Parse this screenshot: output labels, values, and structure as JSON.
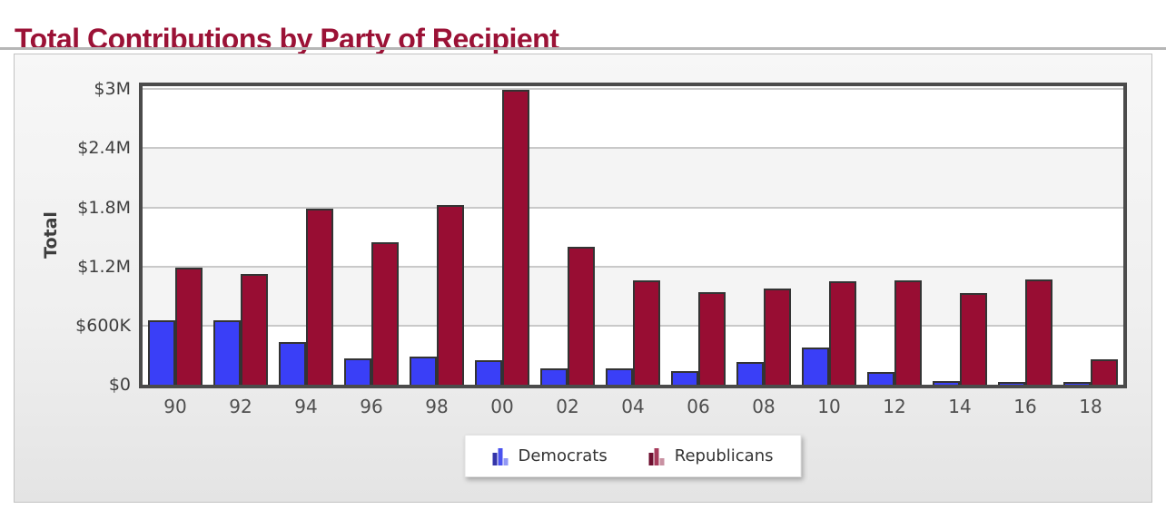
{
  "page": {
    "title": "Total Contributions by Party of Recipient"
  },
  "chart_data": {
    "type": "bar",
    "title": "Total Contributions by Party of Recipient",
    "xlabel": "",
    "ylabel": "Total",
    "units": "USD",
    "categories": [
      "90",
      "92",
      "94",
      "96",
      "98",
      "00",
      "02",
      "04",
      "06",
      "08",
      "10",
      "12",
      "14",
      "16",
      "18"
    ],
    "series": [
      {
        "name": "Democrats",
        "color": "#3a3ff7",
        "legend_icon_colors": [
          "#3334a8",
          "#4a52ef",
          "#9298f5"
        ],
        "values": [
          655000,
          650000,
          430000,
          265000,
          285000,
          250000,
          165000,
          165000,
          140000,
          230000,
          375000,
          130000,
          40000,
          20000,
          10000
        ]
      },
      {
        "name": "Republicans",
        "color": "#980d33",
        "legend_icon_colors": [
          "#6e0f2f",
          "#a63b5b",
          "#c991a2"
        ],
        "values": [
          1190000,
          1120000,
          1790000,
          1450000,
          1820000,
          2990000,
          1400000,
          1060000,
          940000,
          980000,
          1050000,
          1060000,
          930000,
          1070000,
          260000
        ]
      }
    ],
    "y_ticks": [
      {
        "value": 0,
        "label": "$0"
      },
      {
        "value": 600000,
        "label": "$600K"
      },
      {
        "value": 1200000,
        "label": "$1.2M"
      },
      {
        "value": 1800000,
        "label": "$1.8M"
      },
      {
        "value": 2400000,
        "label": "$2.4M"
      },
      {
        "value": 3000000,
        "label": "$3M"
      }
    ],
    "ylim": [
      0,
      3030000
    ],
    "grid": true,
    "legend_position": "bottom"
  },
  "colors": {
    "title": "#9b1236",
    "democrat_bar": "#3a3ff7",
    "republican_bar": "#980d33",
    "bar_border": "#333333",
    "plot_frame": "#4b4b4b",
    "gridline": "#c9c9c9",
    "alt_band": "#f4f4f4",
    "axis_text": "#3e3e3e",
    "x_axis_text": "#4e4e4e"
  }
}
